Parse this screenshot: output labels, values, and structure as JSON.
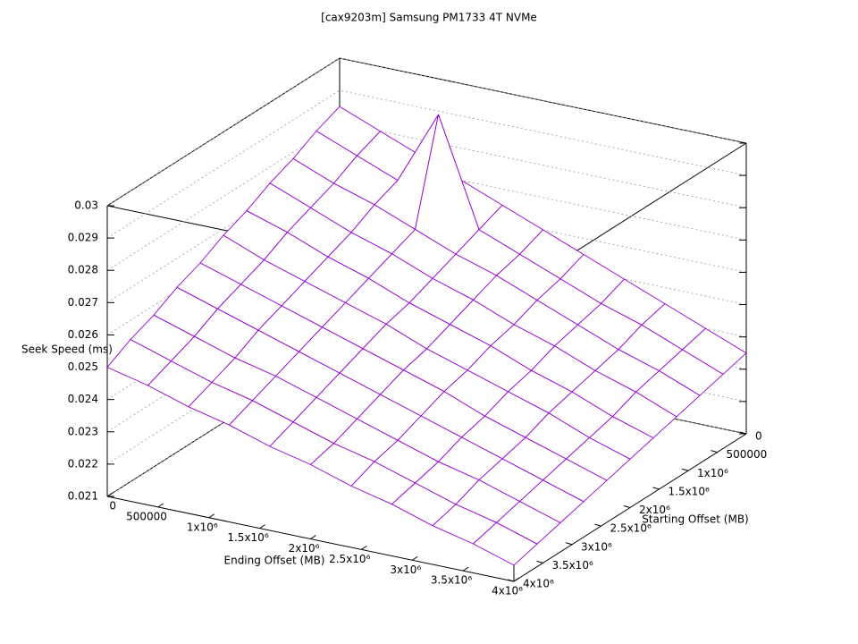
{
  "chart_data": {
    "type": "surface",
    "title": "[cax9203m] Samsung PM1733 4T NVMe",
    "x_label": "Starting Offset (MB)",
    "y_label": "Ending Offset (MB)",
    "z_label": "Seek Speed (ms)",
    "color": "#9400d3",
    "grid": true,
    "x": [
      0,
      400000,
      800000,
      1200000,
      1600000,
      2000000,
      2400000,
      2800000,
      3200000,
      3600000,
      4000000
    ],
    "y": [
      0,
      400000,
      800000,
      1200000,
      1600000,
      2000000,
      2400000,
      2800000,
      3200000,
      3600000,
      4000000
    ],
    "z": [
      [
        0.0285,
        0.028,
        0.0275,
        0.027,
        0.0265,
        0.026,
        0.0255,
        0.025,
        0.0245,
        0.024,
        0.0235
      ],
      [
        0.0282,
        0.0277,
        0.0272,
        0.0295,
        0.0262,
        0.0257,
        0.0252,
        0.0247,
        0.0243,
        0.0238,
        0.0233
      ],
      [
        0.0278,
        0.0273,
        0.0269,
        0.0264,
        0.0259,
        0.0255,
        0.025,
        0.0245,
        0.024,
        0.0236,
        0.0231
      ],
      [
        0.0275,
        0.027,
        0.0265,
        0.0261,
        0.0256,
        0.0252,
        0.0247,
        0.0243,
        0.0238,
        0.0234,
        0.0229
      ],
      [
        0.0271,
        0.0267,
        0.0262,
        0.0258,
        0.0253,
        0.0249,
        0.0245,
        0.024,
        0.0236,
        0.0231,
        0.0227
      ],
      [
        0.0268,
        0.0263,
        0.0259,
        0.0255,
        0.0251,
        0.0246,
        0.0242,
        0.0238,
        0.0234,
        0.0229,
        0.0225
      ],
      [
        0.0264,
        0.026,
        0.0256,
        0.0252,
        0.0248,
        0.0244,
        0.024,
        0.0235,
        0.0231,
        0.0227,
        0.0223
      ],
      [
        0.0261,
        0.0257,
        0.0253,
        0.0249,
        0.0245,
        0.0241,
        0.0237,
        0.0233,
        0.0229,
        0.0225,
        0.0221
      ],
      [
        0.0257,
        0.0253,
        0.0249,
        0.0246,
        0.0242,
        0.0238,
        0.0234,
        0.023,
        0.0227,
        0.0223,
        0.0219
      ],
      [
        0.0254,
        0.025,
        0.0246,
        0.0243,
        0.0239,
        0.0235,
        0.0232,
        0.0228,
        0.0224,
        0.0221,
        0.0217
      ],
      [
        0.025,
        0.0247,
        0.0243,
        0.024,
        0.0236,
        0.0233,
        0.0229,
        0.0226,
        0.0222,
        0.0219,
        0.0215
      ]
    ],
    "xlim": [
      0,
      4000000
    ],
    "ylim": [
      0,
      4000000
    ],
    "zlim": [
      0.021,
      0.03
    ],
    "xticks": [
      0,
      500000,
      {
        "value": 1000000,
        "label": "1x10⁶"
      },
      {
        "value": 1500000,
        "label": "1.5x10⁶"
      },
      {
        "value": 2000000,
        "label": "2x10⁶"
      },
      {
        "value": 2500000,
        "label": "2.5x10⁶"
      },
      {
        "value": 3000000,
        "label": "3x10⁶"
      },
      {
        "value": 3500000,
        "label": "3.5x10⁶"
      },
      {
        "value": 4000000,
        "label": "4x10⁶"
      }
    ],
    "yticks": [
      0,
      500000,
      {
        "value": 1000000,
        "label": "1x10⁶"
      },
      {
        "value": 1500000,
        "label": "1.5x10⁶"
      },
      {
        "value": 2000000,
        "label": "2x10⁶"
      },
      {
        "value": 2500000,
        "label": "2.5x10⁶"
      },
      {
        "value": 3000000,
        "label": "3x10⁶"
      },
      {
        "value": 3500000,
        "label": "3.5x10⁶"
      },
      {
        "value": 4000000,
        "label": "4x10⁶"
      }
    ],
    "zticks": [
      0.021,
      0.022,
      0.023,
      0.024,
      0.025,
      0.026,
      0.027,
      0.028,
      0.029,
      0.03
    ]
  }
}
